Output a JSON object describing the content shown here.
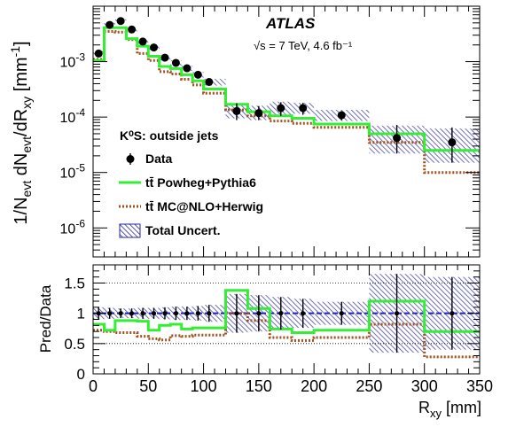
{
  "experiment_label": "ATLAS",
  "energy_lumi_label": "√s = 7 TeV, 4.6 fb⁻¹",
  "selection_label": "K⁰S: outside jets",
  "colors": {
    "data": "#000000",
    "powheg": "#33ee33",
    "mcatnlo": "#a0521e",
    "uncert": "#2a2a9a",
    "ratio_ref": "#1f1fcc"
  },
  "chart_data": [
    {
      "type": "line",
      "panel": "main",
      "ylabel": "1/Nevt dNevt/dRxy [mm⁻¹]",
      "ylabel_parts": {
        "a": "1/N",
        "a_sub": "evt",
        "b": " dN",
        "b_sub": "evt",
        "c": "/dR",
        "c_sub": "xy",
        "d": " [mm",
        "d_sup": "-1",
        "e": "]"
      },
      "y_scale": "log",
      "ylim": [
        3e-07,
        0.01
      ],
      "xlim": [
        0,
        350
      ],
      "y_ticks": [
        {
          "value": 1e-06,
          "base": "10",
          "exp": "-6"
        },
        {
          "value": 1e-05,
          "base": "10",
          "exp": "-5"
        },
        {
          "value": 0.0001,
          "base": "10",
          "exp": "-4"
        },
        {
          "value": 0.001,
          "base": "10",
          "exp": "-3"
        }
      ],
      "bin_edges": [
        0,
        10,
        20,
        30,
        40,
        50,
        60,
        70,
        80,
        90,
        100,
        120,
        140,
        160,
        180,
        200,
        250,
        300,
        350
      ],
      "series": [
        {
          "name": "Data",
          "x": [
            5,
            15,
            25,
            35,
            45,
            55,
            65,
            75,
            85,
            95,
            105,
            130,
            150,
            170,
            190,
            225,
            275,
            325
          ],
          "values": [
            0.0014,
            0.0046,
            0.0054,
            0.0038,
            0.0023,
            0.0018,
            0.00118,
            0.00095,
            0.00076,
            0.00058,
            0.00043,
            0.000128,
            0.000118,
            0.000145,
            0.000145,
            0.000108,
            4.2e-05,
            3.5e-05
          ],
          "err_up": [
            0.0002,
            0.0004,
            0.0004,
            0.0003,
            0.0002,
            0.00015,
            0.00012,
            0.0001,
            8e-05,
            7e-05,
            6e-05,
            5e-05,
            4e-05,
            4e-05,
            3.5e-05,
            2e-05,
            3e-05,
            3e-05
          ],
          "err_down": [
            0.0002,
            0.0004,
            0.0004,
            0.0003,
            0.0002,
            0.00015,
            0.00012,
            0.0001,
            8e-05,
            7e-05,
            6e-05,
            4e-05,
            3e-05,
            4e-05,
            3.5e-05,
            2e-05,
            2e-05,
            2e-05
          ]
        },
        {
          "name": "tt̄ Powheg+Pythia6",
          "values": [
            0.00105,
            0.0041,
            0.0041,
            0.0026,
            0.0019,
            0.00125,
            0.00082,
            0.00075,
            0.00058,
            0.00045,
            0.00032,
            0.00017,
            0.000125,
            0.000105,
            9.5e-05,
            7.5e-05,
            5e-05,
            2.5e-05
          ]
        },
        {
          "name": "tt̄ MC@NLO+Herwig",
          "values": [
            0.0011,
            0.0035,
            0.0034,
            0.0025,
            0.0014,
            0.00105,
            0.00066,
            0.0006,
            0.00048,
            0.00038,
            0.00027,
            0.000135,
            0.000105,
            8.5e-05,
            7.7e-05,
            6.5e-05,
            3.5e-05,
            1e-05
          ]
        },
        {
          "name": "Total Uncert.",
          "band_low": [
            0.00125,
            0.0042,
            0.005,
            0.0035,
            0.0021,
            0.00165,
            0.00105,
            0.00085,
            0.00068,
            0.00051,
            0.00037,
            9.5e-05,
            8.8e-05,
            0.00011,
            0.000115,
            8.5e-05,
            2.2e-05,
            1.5e-05
          ],
          "band_high": [
            0.00155,
            0.005,
            0.0058,
            0.0041,
            0.0025,
            0.00195,
            0.0013,
            0.00105,
            0.00084,
            0.00065,
            0.00049,
            0.00017,
            0.00016,
            0.00019,
            0.00018,
            0.000135,
            7e-05,
            6.2e-05
          ]
        }
      ],
      "legend": {
        "position": "bottom-left",
        "entries": [
          {
            "label": "Data",
            "kind": "marker"
          },
          {
            "label": "tt̄ Powheg+Pythia6",
            "kind": "solid-line"
          },
          {
            "label": "tt̄ MC@NLO+Herwig",
            "kind": "dotted-line"
          },
          {
            "label": "Total Uncert.",
            "kind": "hatched-box"
          }
        ]
      }
    },
    {
      "type": "line",
      "panel": "ratio",
      "ylabel": "Pred/Data",
      "xlabel": "Rxy [mm]",
      "xlabel_parts": {
        "a": "R",
        "a_sub": "xy",
        "b": " [mm]"
      },
      "ylim": [
        0,
        1.8
      ],
      "xlim": [
        0,
        350
      ],
      "y_ticks": [
        "0",
        "0.5",
        "1",
        "1.5"
      ],
      "x_ticks": [
        "0",
        "50",
        "100",
        "150",
        "200",
        "250",
        "300",
        "350"
      ],
      "reference_lines": [
        0.5,
        1.0,
        1.5
      ],
      "bin_edges": [
        0,
        10,
        20,
        30,
        40,
        50,
        60,
        70,
        80,
        90,
        100,
        120,
        140,
        160,
        180,
        200,
        250,
        300,
        350
      ],
      "series": [
        {
          "name": "Data",
          "x": [
            5,
            15,
            25,
            35,
            45,
            55,
            65,
            75,
            85,
            95,
            105,
            130,
            150,
            170,
            190,
            225,
            275,
            325
          ],
          "values": [
            1,
            1,
            1,
            1,
            1,
            1,
            1,
            1,
            1,
            1,
            1,
            1,
            1,
            1,
            1,
            1,
            1,
            1
          ],
          "err": [
            0.1,
            0.09,
            0.08,
            0.08,
            0.09,
            0.09,
            0.1,
            0.11,
            0.11,
            0.12,
            0.14,
            0.32,
            0.3,
            0.27,
            0.24,
            0.19,
            0.65,
            0.6
          ]
        },
        {
          "name": "tt̄ Powheg+Pythia6",
          "values": [
            0.82,
            0.72,
            0.88,
            0.88,
            0.87,
            0.72,
            0.8,
            0.82,
            0.74,
            0.76,
            0.76,
            1.38,
            1.08,
            0.74,
            0.68,
            0.72,
            1.2,
            0.7
          ]
        },
        {
          "name": "tt̄ MC@NLO+Herwig",
          "values": [
            0.72,
            0.7,
            0.68,
            0.68,
            0.62,
            0.58,
            0.56,
            0.63,
            0.62,
            0.64,
            0.64,
            1.0,
            0.88,
            0.6,
            0.55,
            0.6,
            0.82,
            0.28
          ]
        },
        {
          "name": "Total Uncert.",
          "band_low": [
            0.9,
            0.91,
            0.92,
            0.92,
            0.91,
            0.91,
            0.9,
            0.89,
            0.89,
            0.88,
            0.86,
            0.68,
            0.7,
            0.73,
            0.76,
            0.81,
            0.35,
            0.4
          ],
          "band_high": [
            1.1,
            1.09,
            1.08,
            1.08,
            1.09,
            1.09,
            1.1,
            1.11,
            1.11,
            1.12,
            1.14,
            1.32,
            1.3,
            1.27,
            1.24,
            1.19,
            1.65,
            1.6
          ]
        }
      ]
    }
  ]
}
